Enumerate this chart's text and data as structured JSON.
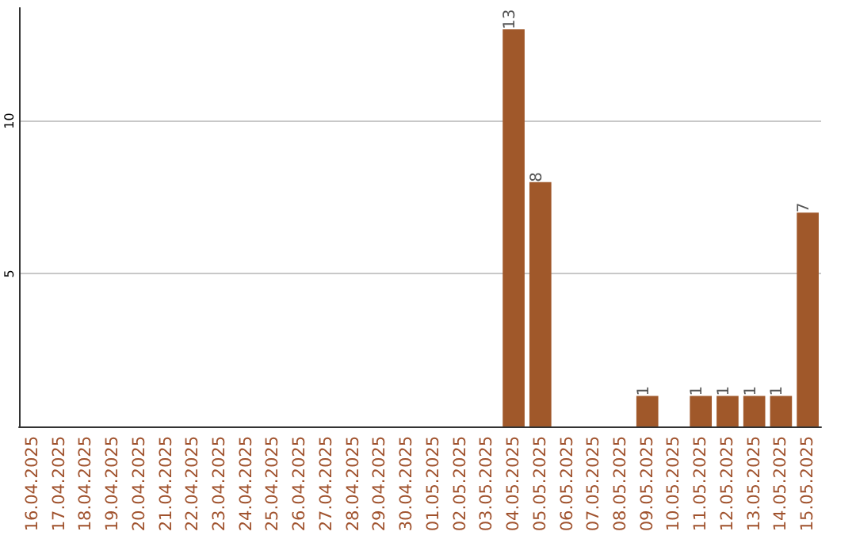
{
  "chart_data": {
    "type": "bar",
    "categories": [
      "16.04.2025",
      "17.04.2025",
      "18.04.2025",
      "19.04.2025",
      "20.04.2025",
      "21.04.2025",
      "22.04.2025",
      "23.04.2025",
      "24.04.2025",
      "25.04.2025",
      "26.04.2025",
      "27.04.2025",
      "28.04.2025",
      "29.04.2025",
      "30.04.2025",
      "01.05.2025",
      "02.05.2025",
      "03.05.2025",
      "04.05.2025",
      "05.05.2025",
      "06.05.2025",
      "07.05.2025",
      "08.05.2025",
      "09.05.2025",
      "10.05.2025",
      "11.05.2025",
      "12.05.2025",
      "13.05.2025",
      "14.05.2025",
      "15.05.2025"
    ],
    "values": [
      0,
      0,
      0,
      0,
      0,
      0,
      0,
      0,
      0,
      0,
      0,
      0,
      0,
      0,
      0,
      0,
      0,
      0,
      13,
      8,
      0,
      0,
      0,
      1,
      0,
      1,
      1,
      1,
      1,
      7
    ],
    "value_labels": [
      null,
      null,
      null,
      null,
      null,
      null,
      null,
      null,
      null,
      null,
      null,
      null,
      null,
      null,
      null,
      null,
      null,
      null,
      "13",
      "8",
      null,
      null,
      null,
      "1",
      null,
      "1",
      "1",
      "1",
      "1",
      "7"
    ],
    "color": "#a0582a",
    "ylim": [
      0,
      13.7
    ],
    "yticks": [
      {
        "value": 0,
        "label": null
      },
      5,
      10
    ],
    "grid": "y"
  }
}
